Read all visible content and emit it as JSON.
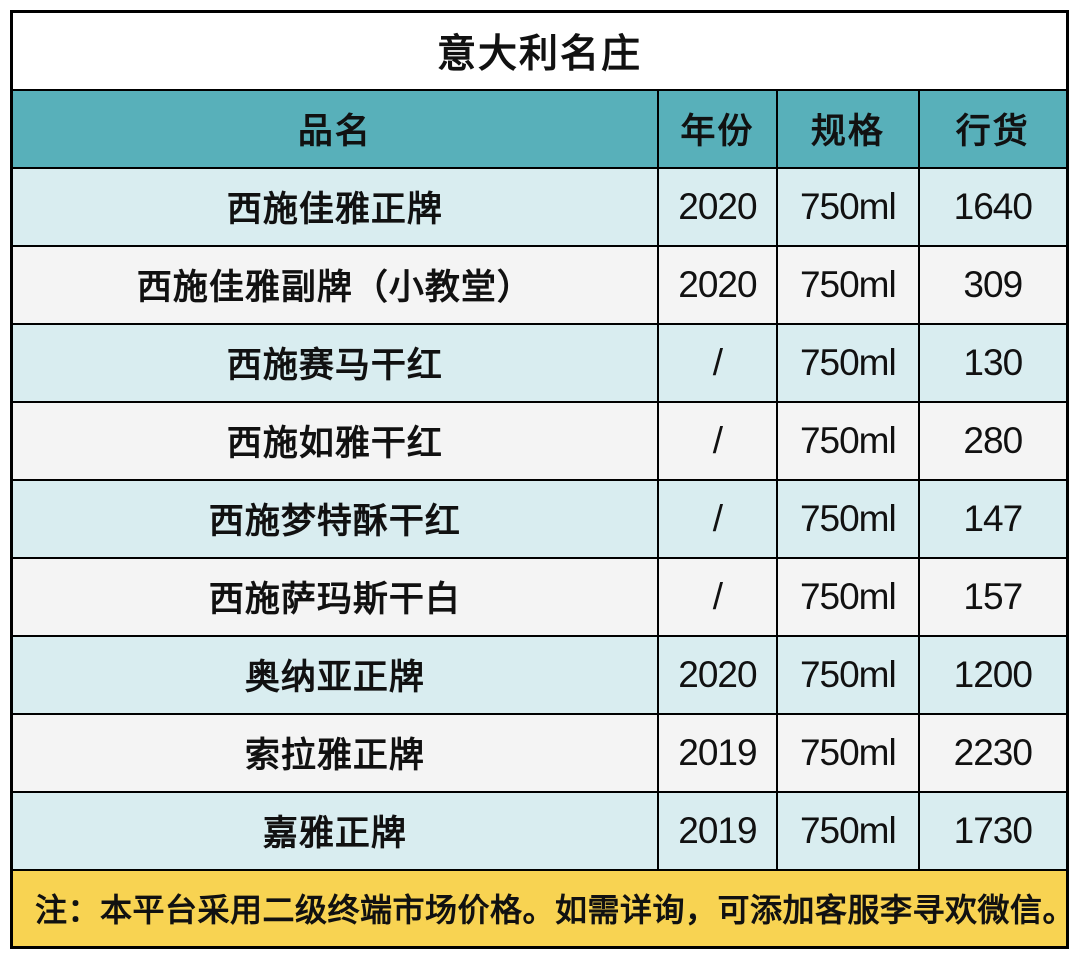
{
  "table": {
    "title": "意大利名庄",
    "columns": [
      "品名",
      "年份",
      "规格",
      "行货"
    ],
    "rows": [
      [
        "西施佳雅正牌",
        "2020",
        "750ml",
        "1640"
      ],
      [
        "西施佳雅副牌（小教堂）",
        "2020",
        "750ml",
        "309"
      ],
      [
        "西施赛马干红",
        "/",
        "750ml",
        "130"
      ],
      [
        "西施如雅干红",
        "/",
        "750ml",
        "280"
      ],
      [
        "西施梦特酥干红",
        "/",
        "750ml",
        "147"
      ],
      [
        "西施萨玛斯干白",
        "/",
        "750ml",
        "157"
      ],
      [
        "奥纳亚正牌",
        "2020",
        "750ml",
        "1200"
      ],
      [
        "索拉雅正牌",
        "2019",
        "750ml",
        "2230"
      ],
      [
        "嘉雅正牌",
        "2019",
        "750ml",
        "1730"
      ]
    ],
    "note": "注：本平台采用二级终端市场价格。如需详询，可添加客服李寻欢微信。"
  },
  "colors": {
    "header_bg": "#58b0ba",
    "row_teal": "#d9edf0",
    "row_light": "#f4f4f4",
    "note_bg": "#f8d352",
    "border": "#000000",
    "title_bg": "#ffffff"
  }
}
